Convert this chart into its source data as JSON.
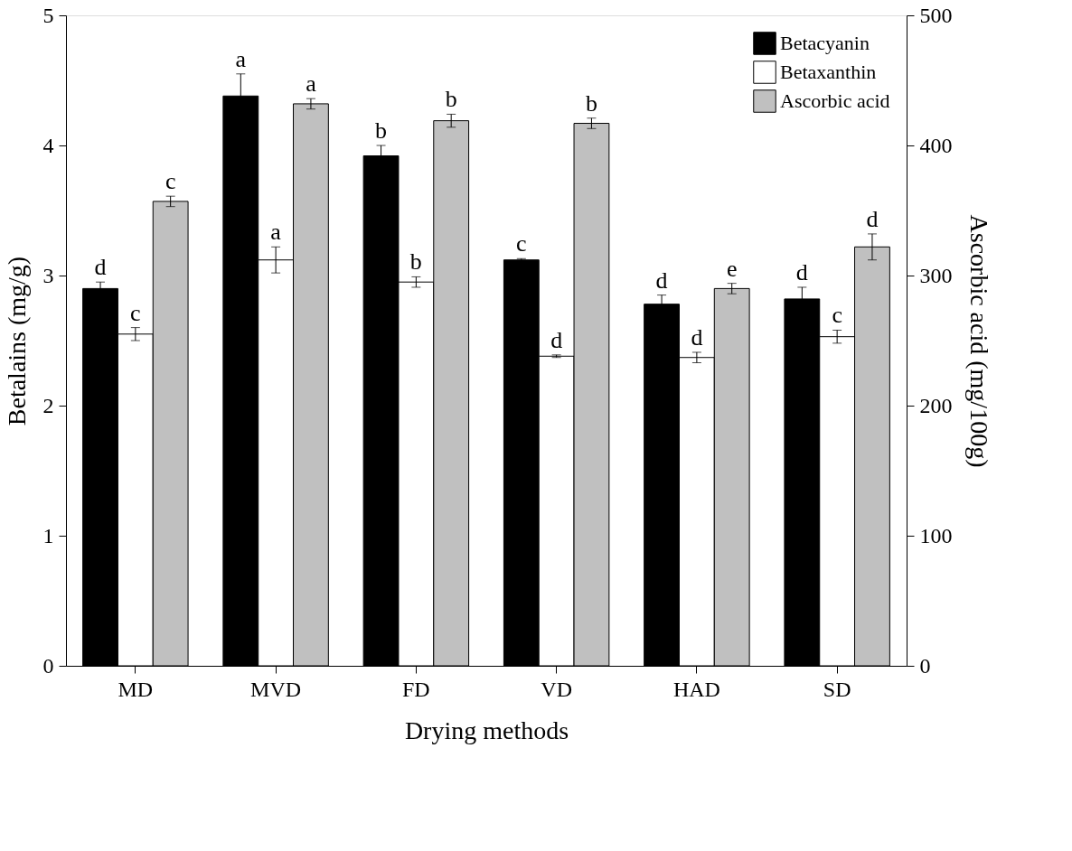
{
  "chart_data": {
    "type": "bar",
    "xlabel": "Drying methods",
    "ylabel": "Betalains (mg/g)",
    "y2label": "Ascorbic acid (mg/100g)",
    "categories": [
      "MD",
      "MVD",
      "FD",
      "VD",
      "HAD",
      "SD"
    ],
    "series": [
      {
        "name": "Betacyanin",
        "color": "#000000",
        "values": [
          2.9,
          4.38,
          3.92,
          3.12,
          2.78,
          2.82
        ],
        "errors": [
          0.05,
          0.17,
          0.08,
          0.01,
          0.07,
          0.09
        ],
        "value_labels": [
          "d",
          "a",
          "b",
          "c",
          "d",
          "d"
        ]
      },
      {
        "name": "Betaxanthin",
        "color": "#ffffff",
        "values": [
          2.55,
          3.12,
          2.95,
          2.38,
          2.37,
          2.53
        ],
        "errors": [
          0.05,
          0.1,
          0.04,
          0.01,
          0.04,
          0.05
        ],
        "value_labels": [
          "c",
          "a",
          "b",
          "d",
          "d",
          "c"
        ]
      },
      {
        "name": "Ascorbic acid",
        "color": "#c0c0c0",
        "axis": "y2",
        "values": [
          357,
          432,
          419,
          417,
          290,
          322
        ],
        "errors": [
          4,
          4,
          5,
          4,
          4,
          10
        ],
        "value_labels": [
          "c",
          "a",
          "b",
          "b",
          "e",
          "d"
        ]
      }
    ],
    "ylim": [
      0,
      5
    ],
    "yticks": [
      0,
      1,
      2,
      3,
      4,
      5
    ],
    "y2lim": [
      0,
      500
    ],
    "y2ticks": [
      0,
      100,
      200,
      300,
      400,
      500
    ],
    "legend": "top right",
    "grid": false
  }
}
